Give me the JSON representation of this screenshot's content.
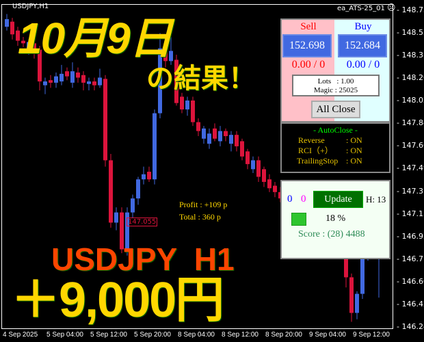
{
  "header": {
    "symbol": "USDJPY,H1",
    "ea_name": "ea_ATS-25_01",
    "ea_status_icon": "sad-face-icon"
  },
  "price_axis": [
    "148.735",
    "148.555",
    "148.380",
    "148.200",
    "148.020",
    "147.845",
    "147.665",
    "147.490",
    "147.310",
    "147.135",
    "146.955",
    "146.775",
    "146.600",
    "146.420",
    "146.245"
  ],
  "time_axis": [
    "4 Sep 2025",
    "5 Sep 04:00",
    "5 Sep 12:00",
    "5 Sep 20:00",
    "8 Sep 04:00",
    "8 Sep 12:00",
    "8 Sep 20:00",
    "9 Sep 04:00",
    "9 Sep 12:00"
  ],
  "colors": {
    "bull": "#4169e1",
    "bear": "#dc143c",
    "overlay_yellow": "#ffd700",
    "overlay_orange": "#ff4500"
  },
  "chart_data": {
    "type": "candlestick",
    "symbol": "USDJPY",
    "timeframe": "H1",
    "ylim": [
      146.245,
      148.735
    ],
    "candles": [
      [
        148.6,
        148.7,
        148.57,
        148.66
      ],
      [
        148.64,
        148.67,
        148.5,
        148.54
      ],
      [
        148.57,
        148.6,
        148.45,
        148.49
      ],
      [
        148.49,
        148.52,
        148.44,
        148.47
      ],
      [
        148.42,
        148.5,
        148.38,
        148.48
      ],
      [
        148.47,
        148.52,
        148.35,
        148.42
      ],
      [
        148.42,
        148.45,
        148.1,
        148.17
      ],
      [
        148.14,
        148.2,
        148.07,
        148.17
      ],
      [
        148.18,
        148.22,
        148.12,
        148.16
      ],
      [
        148.16,
        148.24,
        148.12,
        148.21
      ],
      [
        148.17,
        148.3,
        148.14,
        148.23
      ],
      [
        148.25,
        148.28,
        148.18,
        148.21
      ],
      [
        148.16,
        148.32,
        148.12,
        148.25
      ],
      [
        148.24,
        148.28,
        148.16,
        148.2
      ],
      [
        148.22,
        148.25,
        148.1,
        148.16
      ],
      [
        148.15,
        148.2,
        148.1,
        148.17
      ],
      [
        148.17,
        148.2,
        148.1,
        148.14
      ],
      [
        148.14,
        148.27,
        148.12,
        148.2
      ],
      [
        148.19,
        148.22,
        147.5,
        147.55
      ],
      [
        147.55,
        147.6,
        147.02,
        147.06
      ],
      [
        147.06,
        147.18,
        147.0,
        147.14
      ],
      [
        147.14,
        147.18,
        146.82,
        146.85
      ],
      [
        146.85,
        147.18,
        146.8,
        147.14
      ],
      [
        147.14,
        147.28,
        147.1,
        147.25
      ],
      [
        147.25,
        147.42,
        147.2,
        147.4
      ],
      [
        147.4,
        147.5,
        147.36,
        147.44
      ],
      [
        147.46,
        147.5,
        147.38,
        147.4
      ],
      [
        147.4,
        147.95,
        147.36,
        147.92
      ],
      [
        147.92,
        148.55,
        147.88,
        148.43
      ],
      [
        148.43,
        148.47,
        148.28,
        148.33
      ],
      [
        148.33,
        148.52,
        148.3,
        148.41
      ],
      [
        148.34,
        148.38,
        147.98,
        148.0
      ],
      [
        148.05,
        148.08,
        147.92,
        147.95
      ],
      [
        147.95,
        148.05,
        147.9,
        148.02
      ],
      [
        148.02,
        148.05,
        147.82,
        147.85
      ],
      [
        147.85,
        147.88,
        147.74,
        147.78
      ],
      [
        147.72,
        147.82,
        147.68,
        147.8
      ],
      [
        147.68,
        147.8,
        147.64,
        147.76
      ],
      [
        147.8,
        147.84,
        147.7,
        147.72
      ],
      [
        147.7,
        147.82,
        147.66,
        147.78
      ],
      [
        147.78,
        147.8,
        147.7,
        147.74
      ],
      [
        147.68,
        147.78,
        147.62,
        147.75
      ],
      [
        147.75,
        147.78,
        147.62,
        147.66
      ],
      [
        147.7,
        147.72,
        147.55,
        147.58
      ],
      [
        147.62,
        147.64,
        147.48,
        147.52
      ],
      [
        147.48,
        147.58,
        147.45,
        147.55
      ],
      [
        147.55,
        147.58,
        147.38,
        147.42
      ],
      [
        147.48,
        147.5,
        147.34,
        147.38
      ],
      [
        147.4,
        147.44,
        147.3,
        147.33
      ],
      [
        147.35,
        147.38,
        147.26,
        147.3
      ],
      [
        147.3,
        147.34,
        147.22,
        147.25
      ],
      [
        147.25,
        147.3,
        147.18,
        147.22
      ],
      [
        147.22,
        147.26,
        147.12,
        147.15
      ],
      [
        147.15,
        147.22,
        147.1,
        147.18
      ],
      [
        147.18,
        147.2,
        147.05,
        147.08
      ],
      [
        147.08,
        147.14,
        147.02,
        147.1
      ],
      [
        147.1,
        147.12,
        146.98,
        147.02
      ],
      [
        147.02,
        147.06,
        146.94,
        146.98
      ],
      [
        146.98,
        147.04,
        146.92,
        147.0
      ],
      [
        147.0,
        147.02,
        146.88,
        146.92
      ],
      [
        146.92,
        146.96,
        146.84,
        146.88
      ],
      [
        146.88,
        146.92,
        146.8,
        146.85
      ],
      [
        146.85,
        146.88,
        146.55,
        146.63
      ],
      [
        146.63,
        146.66,
        146.28,
        146.35
      ],
      [
        146.35,
        146.52,
        146.3,
        146.5
      ],
      [
        146.5,
        146.84,
        146.46,
        146.8
      ],
      [
        146.8,
        146.88,
        146.76,
        146.85
      ],
      [
        146.85,
        146.9,
        146.8,
        146.84
      ],
      [
        146.78,
        147.3,
        146.47,
        146.8
      ]
    ]
  },
  "price_marker": "147.055",
  "overlay": {
    "date_title": "10月9日",
    "result": "の結果！",
    "pair": "USDJPY  H1",
    "amount": "＋9,000円",
    "profit": "Profit : +109 p",
    "total": "Total : 360 p"
  },
  "panel": {
    "sell_label": "Sell",
    "buy_label": "Buy",
    "sell_price": "152.698",
    "buy_price": "152.684",
    "sell_pl": "0.00 / 0",
    "buy_pl": "0.00 / 0",
    "lots": "Lots   : 1.00",
    "magic": "Magic : 25025",
    "all_close": "All Close"
  },
  "autoclose": {
    "title": "- AutoClose -",
    "rows": [
      {
        "label": "Reverse",
        "value": ": ON"
      },
      {
        "label": "RCI（+）",
        "value": ": ON"
      },
      {
        "label": "TrailingStop",
        "value": ": ON"
      }
    ]
  },
  "stats": {
    "count_a": "0",
    "count_b": "0",
    "update": "Update",
    "h": "H: 13",
    "percent": "18 %",
    "percent_value": 18,
    "score": "Score : (28) 4488"
  }
}
